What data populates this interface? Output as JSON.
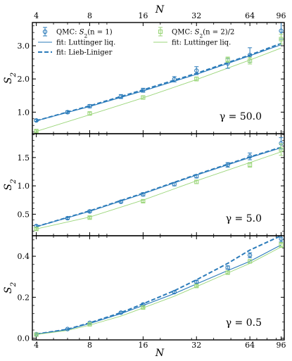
{
  "colors": {
    "dark_blue": "#2b7bba",
    "light_green": "#9bd67a",
    "axis": "#000000"
  },
  "chart_data": {
    "type": "line",
    "x_scale": "log",
    "x_ticks": [
      4,
      8,
      16,
      32,
      64,
      96
    ],
    "xlabel": "N",
    "top_xlabel": "N",
    "ylabel": "S_2",
    "legend": {
      "placement": "top-left",
      "entries": [
        {
          "id": "qmc_s2n1",
          "label": "QMC: S_2(n = 1)",
          "kind": "errorbar-circle",
          "color": "#2b7bba"
        },
        {
          "id": "qmc_s2n2",
          "label": "QMC: S_2(n = 2)/2",
          "kind": "errorbar-square",
          "color": "#9bd67a"
        },
        {
          "id": "fit_ll_blue",
          "label": "fit: Luttinger liq.",
          "kind": "solid-line",
          "color": "#2b7bba"
        },
        {
          "id": "fit_ll_green",
          "label": "fit: Luttinger liq.",
          "kind": "solid-line",
          "color": "#9bd67a"
        },
        {
          "id": "fit_lieb",
          "label": "fit: Lieb-Liniger",
          "kind": "dashed-line",
          "color": "#2b7bba"
        }
      ]
    },
    "panels": [
      {
        "gamma_label": "γ = 50.0",
        "ylim": [
          0.35,
          3.7
        ],
        "yticks": [
          1.0,
          2.0,
          3.0
        ],
        "ytick_labels": [
          "1.0",
          "2.0",
          "3.0"
        ],
        "series": [
          {
            "id": "qmc_s2n1",
            "style": "marker-circle",
            "color": "#2b7bba",
            "x": [
              4,
              6,
              8,
              12,
              16,
              24,
              32,
              48,
              64,
              96
            ],
            "y": [
              0.75,
              1.0,
              1.18,
              1.47,
              1.66,
              1.99,
              2.25,
              2.47,
              2.72,
              3.45
            ],
            "err": [
              0.03,
              0.04,
              0.05,
              0.06,
              0.06,
              0.08,
              0.12,
              0.15,
              0.22,
              0.25
            ]
          },
          {
            "id": "qmc_s2n2",
            "style": "marker-square",
            "color": "#9bd67a",
            "x": [
              4,
              8,
              16,
              32,
              48,
              64,
              96
            ],
            "y": [
              0.43,
              0.96,
              1.44,
              2.0,
              2.58,
              2.55,
              3.2
            ],
            "err": [
              0.03,
              0.04,
              0.05,
              0.06,
              0.08,
              0.1,
              0.15
            ]
          },
          {
            "id": "fit_ll_blue",
            "style": "solid",
            "color": "#2b7bba",
            "x": [
              4,
              8,
              16,
              32,
              64,
              96
            ],
            "y": [
              0.74,
              1.17,
              1.64,
              2.14,
              2.7,
              3.03
            ]
          },
          {
            "id": "fit_lieb",
            "style": "dashed",
            "color": "#2b7bba",
            "x": [
              4,
              8,
              16,
              32,
              64,
              96
            ],
            "y": [
              0.74,
              1.19,
              1.67,
              2.17,
              2.72,
              3.07
            ]
          },
          {
            "id": "fit_ll_green",
            "style": "solid",
            "color": "#9bd67a",
            "x": [
              4,
              8,
              16,
              32,
              64,
              96
            ],
            "y": [
              0.42,
              0.92,
              1.43,
              1.98,
              2.57,
              2.93
            ]
          }
        ]
      },
      {
        "gamma_label": "γ = 5.0",
        "ylim": [
          0.12,
          1.92
        ],
        "yticks": [
          0.5,
          1.0,
          1.5
        ],
        "ytick_labels": [
          "0.5",
          "1.0",
          "1.5"
        ],
        "series": [
          {
            "id": "qmc_s2n1",
            "style": "marker-circle",
            "color": "#2b7bba",
            "x": [
              4,
              6,
              8,
              12,
              16,
              24,
              32,
              48,
              64,
              96
            ],
            "y": [
              0.29,
              0.43,
              0.55,
              0.72,
              0.85,
              1.03,
              1.17,
              1.37,
              1.52,
              1.75
            ],
            "err": [
              0.02,
              0.02,
              0.02,
              0.02,
              0.03,
              0.03,
              0.03,
              0.04,
              0.06,
              0.1
            ]
          },
          {
            "id": "qmc_s2n2",
            "style": "marker-square",
            "color": "#9bd67a",
            "x": [
              4,
              8,
              16,
              32,
              64,
              96
            ],
            "y": [
              0.24,
              0.44,
              0.73,
              1.07,
              1.37,
              1.64
            ],
            "err": [
              0.02,
              0.02,
              0.02,
              0.03,
              0.04,
              0.1
            ]
          },
          {
            "id": "fit_ll_blue",
            "style": "solid",
            "color": "#2b7bba",
            "x": [
              4,
              8,
              16,
              32,
              64,
              96
            ],
            "y": [
              0.28,
              0.55,
              0.86,
              1.19,
              1.5,
              1.67
            ]
          },
          {
            "id": "fit_lieb",
            "style": "dashed",
            "color": "#2b7bba",
            "x": [
              4,
              8,
              16,
              32,
              64,
              96
            ],
            "y": [
              0.28,
              0.56,
              0.87,
              1.2,
              1.51,
              1.68
            ]
          },
          {
            "id": "fit_ll_green",
            "style": "solid",
            "color": "#9bd67a",
            "x": [
              4,
              8,
              16,
              32,
              64,
              96
            ],
            "y": [
              0.24,
              0.45,
              0.75,
              1.09,
              1.41,
              1.6
            ]
          }
        ]
      },
      {
        "gamma_label": "γ = 0.5",
        "ylim": [
          -0.008,
          0.5
        ],
        "yticks": [
          0.0,
          0.2,
          0.4
        ],
        "ytick_labels": [
          "0.0",
          "0.2",
          "0.4"
        ],
        "series": [
          {
            "id": "qmc_s2n1",
            "style": "marker-circle",
            "color": "#2b7bba",
            "x": [
              4,
              6,
              8,
              12,
              16,
              24,
              32,
              48,
              64,
              96
            ],
            "y": [
              0.02,
              0.045,
              0.075,
              0.125,
              0.165,
              0.225,
              0.275,
              0.345,
              0.405,
              0.485
            ],
            "err": [
              0.002,
              0.003,
              0.003,
              0.004,
              0.005,
              0.005,
              0.006,
              0.008,
              0.012,
              0.015
            ]
          },
          {
            "id": "qmc_s2n2",
            "style": "marker-square",
            "color": "#9bd67a",
            "x": [
              4,
              8,
              16,
              32,
              48,
              64,
              96
            ],
            "y": [
              0.018,
              0.068,
              0.15,
              0.255,
              0.32,
              0.375,
              0.455
            ],
            "err": [
              0.002,
              0.003,
              0.004,
              0.005,
              0.006,
              0.007,
              0.012
            ]
          },
          {
            "id": "fit_ll_blue",
            "style": "solid",
            "color": "#2b7bba",
            "x": [
              4,
              6,
              8,
              12,
              16,
              24,
              32,
              48,
              64,
              96
            ],
            "y": [
              0.02,
              0.042,
              0.072,
              0.12,
              0.16,
              0.218,
              0.265,
              0.33,
              0.375,
              0.455
            ]
          },
          {
            "id": "fit_lieb",
            "style": "dashed",
            "color": "#2b7bba",
            "x": [
              4,
              6,
              8,
              12,
              16,
              24,
              32,
              48,
              64,
              96
            ],
            "y": [
              0.02,
              0.044,
              0.075,
              0.125,
              0.168,
              0.232,
              0.285,
              0.365,
              0.43,
              0.5
            ]
          },
          {
            "id": "fit_ll_green",
            "style": "solid",
            "color": "#9bd67a",
            "x": [
              4,
              6,
              8,
              12,
              16,
              24,
              32,
              48,
              64,
              96
            ],
            "y": [
              0.018,
              0.038,
              0.064,
              0.108,
              0.148,
              0.205,
              0.252,
              0.318,
              0.365,
              0.445
            ]
          }
        ]
      }
    ]
  }
}
